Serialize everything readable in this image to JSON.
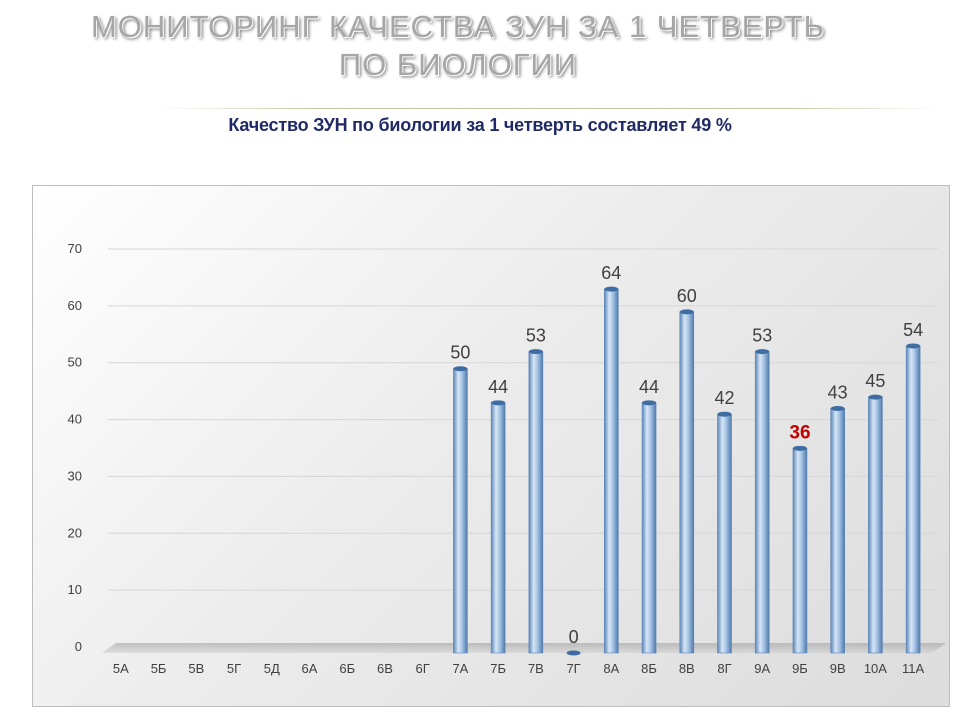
{
  "page": {
    "title_line1": "МОНИТОРИНГ  КАЧЕСТВА ЗУН ЗА 1  ЧЕТВЕРТЬ",
    "title_line2": "ПО  БИОЛОГИИ",
    "subtitle": "Качество ЗУН по биологии  за 1 четверть  составляет  49  %",
    "title_color": "#a6a6a6",
    "subtitle_color": "#1f2a66"
  },
  "chart_data": {
    "type": "bar",
    "title": "",
    "xlabel": "",
    "ylabel": "",
    "categories": [
      "5А",
      "5Б",
      "5В",
      "5Г",
      "5Д",
      "6А",
      "6Б",
      "6В",
      "6Г",
      "7А",
      "7Б",
      "7В",
      "7Г",
      "8А",
      "8Б",
      "8В",
      "8Г",
      "9А",
      "9Б",
      "9В",
      "10А",
      "11А"
    ],
    "values": [
      null,
      null,
      null,
      null,
      null,
      null,
      null,
      null,
      null,
      50,
      44,
      53,
      0,
      64,
      44,
      60,
      42,
      53,
      36,
      43,
      45,
      54
    ],
    "value_labels": [
      "",
      "",
      "",
      "",
      "",
      "",
      "",
      "",
      "",
      "50",
      "44",
      "53",
      "0",
      "64",
      "44",
      "60",
      "42",
      "53",
      "36",
      "43",
      "45",
      "54"
    ],
    "highlight_category": "9Б",
    "highlight_label_color": "#c00000",
    "ylim": [
      0,
      70
    ],
    "yticks": [
      0,
      10,
      20,
      30,
      40,
      50,
      60,
      70
    ],
    "grid": true,
    "legend": "none",
    "bar_color": "#8fb4dc",
    "bar_edge_color": "#5b86b8",
    "label_color": "#404040"
  }
}
